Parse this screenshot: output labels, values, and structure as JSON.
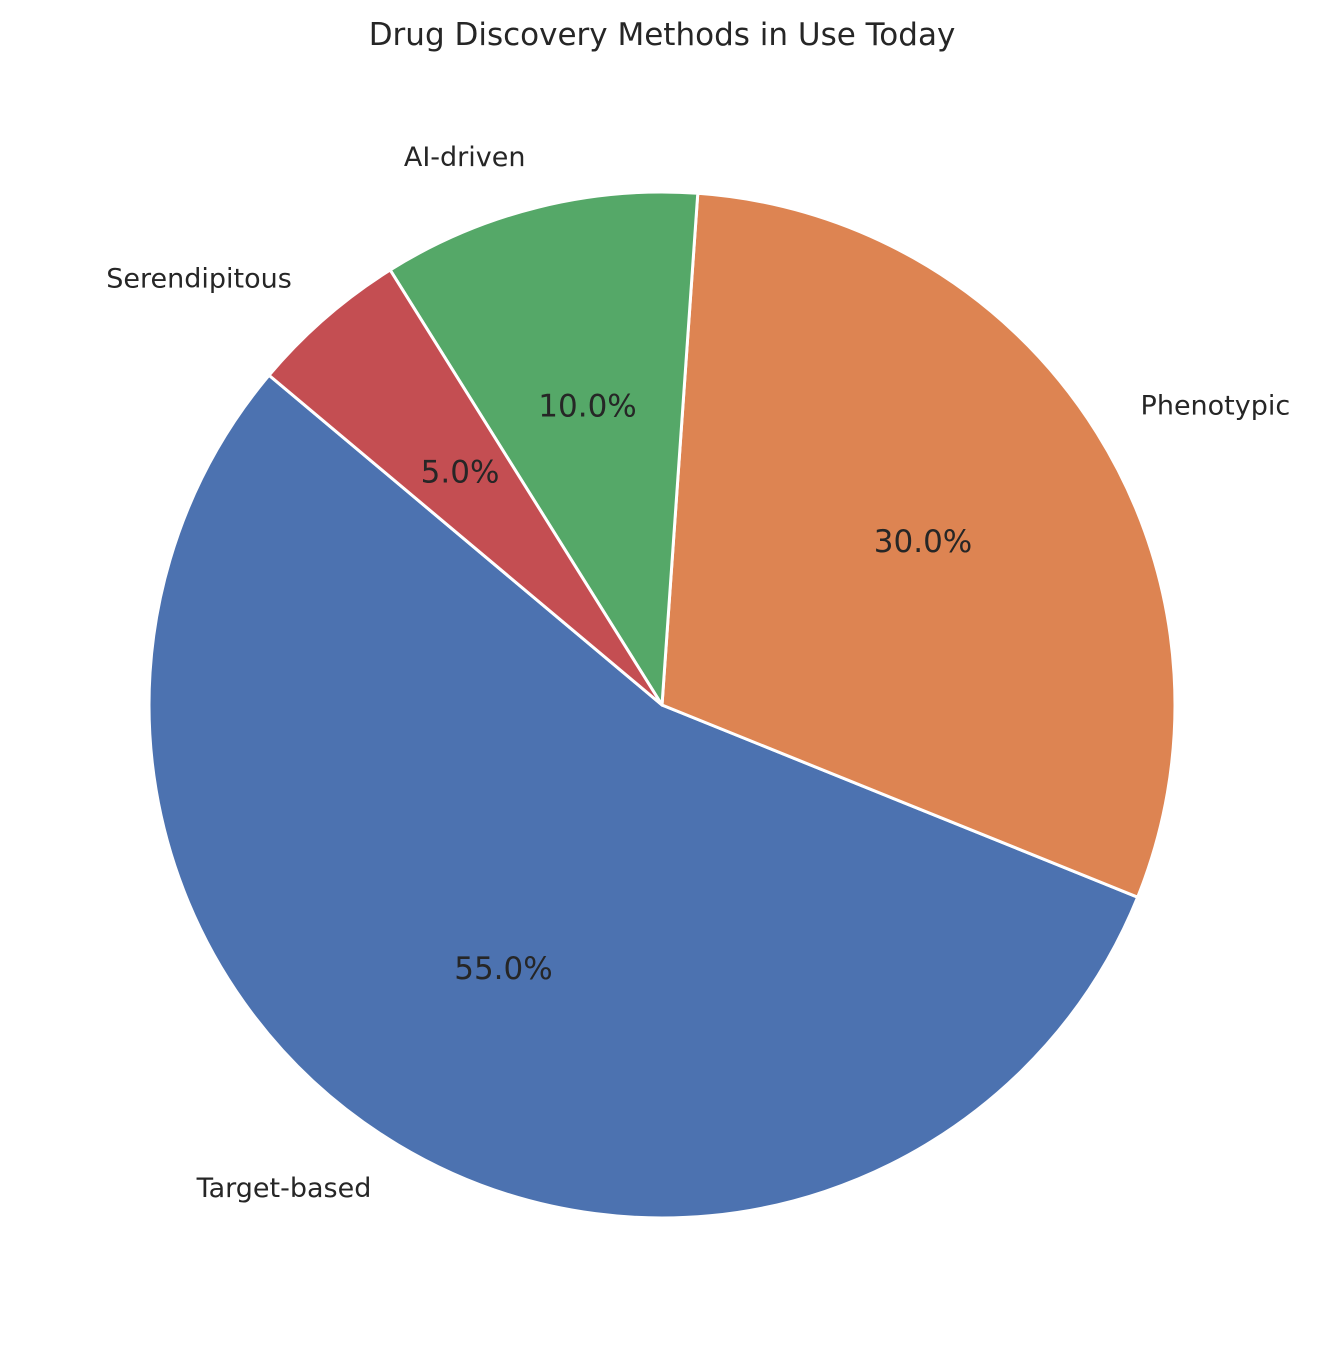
{
  "chart_data": {
    "type": "pie",
    "title": "Drug Discovery Methods in Use Today",
    "categories": [
      "Target-based",
      "Phenotypic",
      "AI-driven",
      "Serendipitous"
    ],
    "values": [
      55,
      30,
      10,
      5
    ],
    "percent_labels": [
      "55.0%",
      "30.0%",
      "10.0%",
      "5.0%"
    ],
    "colors": [
      "#4c72b0",
      "#dd8452",
      "#55a868",
      "#c44e52"
    ],
    "start_angle_deg": 140,
    "direction": "counterclockwise",
    "legend": "none"
  }
}
